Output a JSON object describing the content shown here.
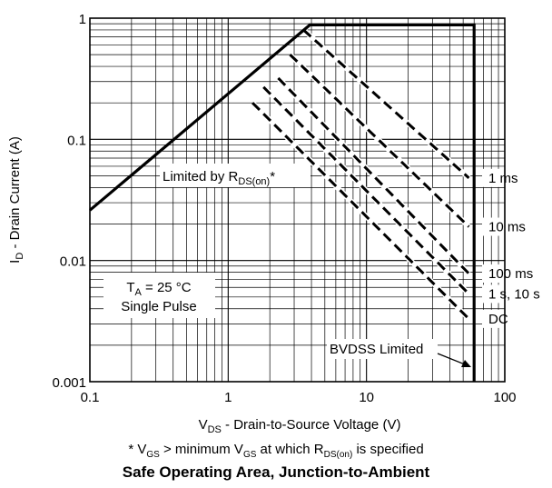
{
  "chart_data": {
    "type": "line",
    "title": "Safe Operating Area, Junction-to-Ambient",
    "xlabel": {
      "main": "V",
      "sub": "DS",
      "rest": " - Drain-to-Source Voltage (V)"
    },
    "ylabel": {
      "main": "I",
      "sub": "D",
      "rest": " - Drain Current (A)"
    },
    "x_scale": "log",
    "y_scale": "log",
    "xlim": [
      0.1,
      100
    ],
    "ylim": [
      0.001,
      1
    ],
    "x_ticks": [
      0.1,
      1,
      10,
      100
    ],
    "x_tick_labels": [
      "0.1",
      "1",
      "10",
      "100"
    ],
    "y_ticks": [
      0.001,
      0.01,
      0.1,
      1
    ],
    "y_tick_labels": [
      "0.001",
      "0.01",
      "0.1",
      "1"
    ],
    "grid": true,
    "boundary": [
      {
        "x": 0.1,
        "y": 0.026
      },
      {
        "x": 3.9,
        "y": 0.88
      },
      {
        "x": 60,
        "y": 0.88
      },
      {
        "x": 60,
        "y": 0.001
      }
    ],
    "series": [
      {
        "name": "1 ms",
        "x": [
          3.5,
          55
        ],
        "y": [
          0.8,
          0.048
        ]
      },
      {
        "name": "10 ms",
        "x": [
          2.8,
          55
        ],
        "y": [
          0.5,
          0.019
        ]
      },
      {
        "name": "100 ms",
        "x": [
          2.3,
          55
        ],
        "y": [
          0.32,
          0.0078
        ]
      },
      {
        "name": "1 s, 10 s",
        "x": [
          1.8,
          55
        ],
        "y": [
          0.27,
          0.0053
        ]
      },
      {
        "name": "DC",
        "x": [
          1.5,
          55
        ],
        "y": [
          0.2,
          0.0033
        ]
      }
    ],
    "annotations": {
      "rds_main": "Limited by R",
      "rds_sub": "DS(on)",
      "rds_rest": "*",
      "ta_main": "T",
      "ta_sub": "A",
      "ta_rest": " = 25 °C",
      "pulse": "Single Pulse",
      "bvdss": "BVDSS Limited"
    }
  },
  "footnote": {
    "star": "* ",
    "vgs1": "V",
    "vgs1_sub": "GS",
    "mid": " > minimum ",
    "vgs2": "V",
    "vgs2_sub": "GS",
    "at": " at which ",
    "rds": "R",
    "rds_sub": "DS(on)",
    "end": " is specified"
  }
}
